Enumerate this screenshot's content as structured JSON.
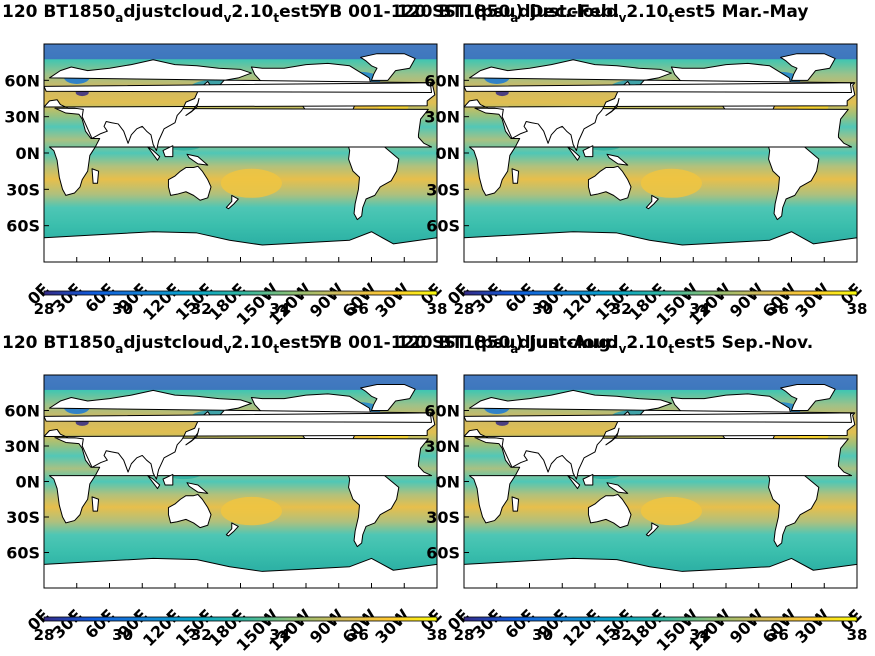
{
  "colormap": [
    "#352a87",
    "#0f5cdd",
    "#1481d6",
    "#06a4ca",
    "#2eb7a4",
    "#87bf77",
    "#d1bb59",
    "#fec832",
    "#f9fb0e"
  ],
  "land_color": "#ffffff",
  "chart_data": [
    {
      "type": "heatmap",
      "title_parts": [
        "120 BT1850",
        "a",
        "djustcloud",
        "v",
        "2.10",
        "t",
        "est5"
      ],
      "title_overlap": "YB 001-120 SST (psu) Dec.-Feb.",
      "xticks": [
        "0E",
        "30E",
        "60E",
        "90E",
        "120E",
        "150E",
        "180E",
        "150W",
        "120W",
        "90W",
        "60W",
        "30W",
        "0E"
      ],
      "yticks": [
        "60N",
        "30N",
        "0N",
        "30S",
        "60S"
      ],
      "colorbar": {
        "ticks": [
          "28",
          "30",
          "32",
          "34",
          "36",
          "38"
        ],
        "range": [
          28,
          38
        ]
      }
    },
    {
      "type": "heatmap",
      "title_parts": [
        "120 BT1850",
        "a",
        "djustcloud",
        "v",
        "2.10",
        "t",
        "est5"
      ],
      "title_tail": " Mar.-May",
      "xticks": [
        "0E",
        "30E",
        "60E",
        "90E",
        "120E",
        "150E",
        "180E",
        "150W",
        "120W",
        "90W",
        "60W",
        "30W",
        "0E"
      ],
      "yticks": [
        "60N",
        "30N",
        "0N",
        "30S",
        "60S"
      ],
      "colorbar": {
        "ticks": [
          "28",
          "30",
          "32",
          "34",
          "36",
          "38"
        ],
        "range": [
          28,
          38
        ]
      }
    },
    {
      "type": "heatmap",
      "title_parts": [
        "120 BT1850",
        "a",
        "djustcloud",
        "v",
        "2.10",
        "t",
        "est5"
      ],
      "title_overlap": "YB 001-120 SST (psu) Jun.-Aug.",
      "xticks": [
        "0E",
        "30E",
        "60E",
        "90E",
        "120E",
        "150E",
        "180E",
        "150W",
        "120W",
        "90W",
        "60W",
        "30W",
        "0E"
      ],
      "yticks": [
        "60N",
        "30N",
        "0N",
        "30S",
        "60S"
      ],
      "colorbar": {
        "ticks": [
          "28",
          "30",
          "32",
          "34",
          "36",
          "38"
        ],
        "range": [
          28,
          38
        ]
      }
    },
    {
      "type": "heatmap",
      "title_parts": [
        "120 BT1850",
        "a",
        "djustcloud",
        "v",
        "2.10",
        "t",
        "est5"
      ],
      "title_tail": " Sep.-Nov.",
      "xticks": [
        "0E",
        "30E",
        "60E",
        "90E",
        "120E",
        "150E",
        "180E",
        "150W",
        "120W",
        "90W",
        "60W",
        "30W",
        "0E"
      ],
      "yticks": [
        "60N",
        "30N",
        "0N",
        "30S",
        "60S"
      ],
      "colorbar": {
        "ticks": [
          "28",
          "30",
          "32",
          "34",
          "36",
          "38"
        ],
        "range": [
          28,
          38
        ]
      }
    }
  ]
}
